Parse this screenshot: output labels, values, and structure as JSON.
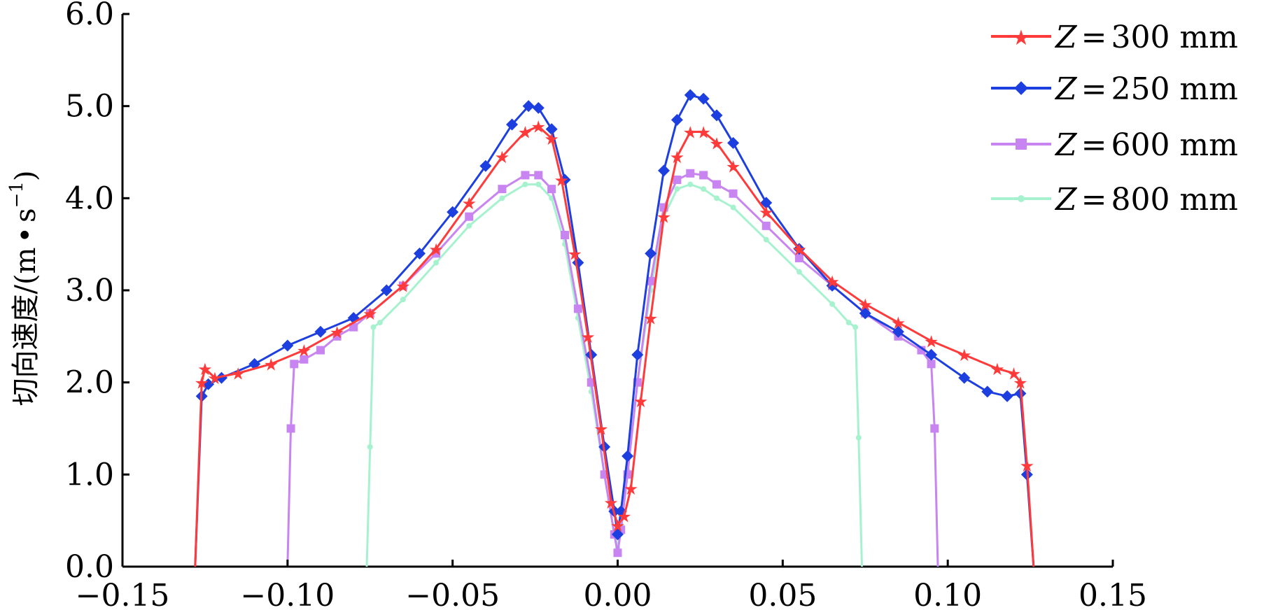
{
  "chart_data": {
    "type": "line",
    "title": "",
    "xlabel": "",
    "ylabel": "切向速度/(m·s⁻¹)",
    "ylabel_parts": {
      "main": "切向速度/(m",
      "dot": "•",
      "s": "s",
      "exp": "−1",
      "close": ")"
    },
    "xlim": [
      -0.15,
      0.15
    ],
    "ylim": [
      0.0,
      6.0
    ],
    "x_ticks": [
      -0.15,
      -0.1,
      -0.05,
      0.0,
      0.05,
      0.1,
      0.15
    ],
    "x_tick_labels": [
      "−0.15",
      "−0.10",
      "−0.05",
      "0.00",
      "0.05",
      "0.10",
      "0.15"
    ],
    "y_ticks": [
      0.0,
      1.0,
      2.0,
      3.0,
      4.0,
      5.0,
      6.0
    ],
    "y_tick_labels": [
      "0.0",
      "1.0",
      "2.0",
      "3.0",
      "4.0",
      "5.0",
      "6.0"
    ],
    "grid": false,
    "legend_position": "top-right",
    "series": [
      {
        "name": "Z=300 mm",
        "legend": {
          "var": "Z",
          "eq": "=",
          "value": "300 mm"
        },
        "color": "#ff3a3a",
        "marker": "star",
        "points": [
          [
            -0.128,
            0.0
          ],
          [
            -0.126,
            2.0
          ],
          [
            -0.125,
            2.15
          ],
          [
            -0.122,
            2.05
          ],
          [
            -0.115,
            2.1
          ],
          [
            -0.105,
            2.2
          ],
          [
            -0.095,
            2.35
          ],
          [
            -0.085,
            2.55
          ],
          [
            -0.075,
            2.75
          ],
          [
            -0.065,
            3.05
          ],
          [
            -0.055,
            3.45
          ],
          [
            -0.045,
            3.95
          ],
          [
            -0.035,
            4.45
          ],
          [
            -0.028,
            4.72
          ],
          [
            -0.024,
            4.78
          ],
          [
            -0.02,
            4.65
          ],
          [
            -0.017,
            4.2
          ],
          [
            -0.013,
            3.4
          ],
          [
            -0.009,
            2.5
          ],
          [
            -0.005,
            1.5
          ],
          [
            -0.002,
            0.7
          ],
          [
            0.0,
            0.45
          ],
          [
            0.002,
            0.55
          ],
          [
            0.004,
            0.85
          ],
          [
            0.007,
            1.8
          ],
          [
            0.01,
            2.7
          ],
          [
            0.014,
            3.8
          ],
          [
            0.018,
            4.45
          ],
          [
            0.022,
            4.72
          ],
          [
            0.026,
            4.72
          ],
          [
            0.03,
            4.6
          ],
          [
            0.035,
            4.35
          ],
          [
            0.045,
            3.85
          ],
          [
            0.055,
            3.45
          ],
          [
            0.065,
            3.1
          ],
          [
            0.075,
            2.85
          ],
          [
            0.085,
            2.65
          ],
          [
            0.095,
            2.45
          ],
          [
            0.105,
            2.3
          ],
          [
            0.115,
            2.15
          ],
          [
            0.12,
            2.1
          ],
          [
            0.122,
            2.0
          ],
          [
            0.124,
            1.1
          ],
          [
            0.126,
            0.0
          ]
        ]
      },
      {
        "name": "Z=250 mm",
        "legend": {
          "var": "Z",
          "eq": "=",
          "value": "250 mm"
        },
        "color": "#1d3fe0",
        "marker": "diamond",
        "points": [
          [
            -0.128,
            0.0
          ],
          [
            -0.126,
            1.85
          ],
          [
            -0.124,
            1.98
          ],
          [
            -0.12,
            2.05
          ],
          [
            -0.11,
            2.2
          ],
          [
            -0.1,
            2.4
          ],
          [
            -0.09,
            2.55
          ],
          [
            -0.08,
            2.7
          ],
          [
            -0.07,
            3.0
          ],
          [
            -0.06,
            3.4
          ],
          [
            -0.05,
            3.85
          ],
          [
            -0.04,
            4.35
          ],
          [
            -0.032,
            4.8
          ],
          [
            -0.027,
            5.0
          ],
          [
            -0.024,
            4.98
          ],
          [
            -0.02,
            4.75
          ],
          [
            -0.016,
            4.2
          ],
          [
            -0.012,
            3.3
          ],
          [
            -0.008,
            2.3
          ],
          [
            -0.004,
            1.3
          ],
          [
            -0.001,
            0.6
          ],
          [
            0.0,
            0.35
          ],
          [
            0.001,
            0.6
          ],
          [
            0.003,
            1.2
          ],
          [
            0.006,
            2.3
          ],
          [
            0.01,
            3.4
          ],
          [
            0.014,
            4.3
          ],
          [
            0.018,
            4.85
          ],
          [
            0.022,
            5.12
          ],
          [
            0.026,
            5.08
          ],
          [
            0.03,
            4.9
          ],
          [
            0.035,
            4.6
          ],
          [
            0.045,
            3.95
          ],
          [
            0.055,
            3.45
          ],
          [
            0.065,
            3.05
          ],
          [
            0.075,
            2.75
          ],
          [
            0.085,
            2.55
          ],
          [
            0.095,
            2.3
          ],
          [
            0.105,
            2.05
          ],
          [
            0.112,
            1.9
          ],
          [
            0.118,
            1.85
          ],
          [
            0.122,
            1.88
          ],
          [
            0.124,
            1.0
          ],
          [
            0.126,
            0.0
          ]
        ]
      },
      {
        "name": "Z=600 mm",
        "legend": {
          "var": "Z",
          "eq": "=",
          "value": "600 mm"
        },
        "color": "#c884f0",
        "marker": "square",
        "points": [
          [
            -0.1,
            0.0
          ],
          [
            -0.099,
            1.5
          ],
          [
            -0.098,
            2.2
          ],
          [
            -0.095,
            2.25
          ],
          [
            -0.09,
            2.35
          ],
          [
            -0.085,
            2.5
          ],
          [
            -0.08,
            2.6
          ],
          [
            -0.075,
            2.75
          ],
          [
            -0.065,
            3.05
          ],
          [
            -0.055,
            3.4
          ],
          [
            -0.045,
            3.8
          ],
          [
            -0.035,
            4.1
          ],
          [
            -0.028,
            4.25
          ],
          [
            -0.024,
            4.25
          ],
          [
            -0.02,
            4.1
          ],
          [
            -0.016,
            3.6
          ],
          [
            -0.012,
            2.8
          ],
          [
            -0.008,
            2.0
          ],
          [
            -0.004,
            1.0
          ],
          [
            -0.001,
            0.35
          ],
          [
            0.0,
            0.15
          ],
          [
            0.001,
            0.4
          ],
          [
            0.003,
            1.0
          ],
          [
            0.006,
            2.0
          ],
          [
            0.01,
            3.1
          ],
          [
            0.014,
            3.9
          ],
          [
            0.018,
            4.2
          ],
          [
            0.022,
            4.27
          ],
          [
            0.026,
            4.25
          ],
          [
            0.03,
            4.15
          ],
          [
            0.035,
            4.05
          ],
          [
            0.045,
            3.7
          ],
          [
            0.055,
            3.35
          ],
          [
            0.065,
            3.05
          ],
          [
            0.075,
            2.75
          ],
          [
            0.085,
            2.5
          ],
          [
            0.092,
            2.35
          ],
          [
            0.095,
            2.2
          ],
          [
            0.096,
            1.5
          ],
          [
            0.097,
            0.0
          ]
        ]
      },
      {
        "name": "Z=800 mm",
        "legend": {
          "var": "Z",
          "eq": "=",
          "value": "800 mm"
        },
        "color": "#a6f2cf",
        "marker": "dot",
        "points": [
          [
            -0.076,
            0.0
          ],
          [
            -0.075,
            1.3
          ],
          [
            -0.074,
            2.6
          ],
          [
            -0.072,
            2.65
          ],
          [
            -0.065,
            2.9
          ],
          [
            -0.055,
            3.3
          ],
          [
            -0.045,
            3.7
          ],
          [
            -0.035,
            4.0
          ],
          [
            -0.028,
            4.15
          ],
          [
            -0.024,
            4.15
          ],
          [
            -0.02,
            4.0
          ],
          [
            -0.016,
            3.5
          ],
          [
            -0.012,
            2.7
          ],
          [
            -0.008,
            1.9
          ],
          [
            -0.004,
            1.0
          ],
          [
            -0.001,
            0.35
          ],
          [
            0.0,
            0.2
          ],
          [
            0.001,
            0.45
          ],
          [
            0.003,
            1.05
          ],
          [
            0.006,
            2.0
          ],
          [
            0.01,
            3.0
          ],
          [
            0.014,
            3.8
          ],
          [
            0.018,
            4.1
          ],
          [
            0.022,
            4.15
          ],
          [
            0.026,
            4.1
          ],
          [
            0.03,
            4.0
          ],
          [
            0.035,
            3.9
          ],
          [
            0.045,
            3.55
          ],
          [
            0.055,
            3.2
          ],
          [
            0.065,
            2.85
          ],
          [
            0.07,
            2.65
          ],
          [
            0.072,
            2.6
          ],
          [
            0.073,
            1.4
          ],
          [
            0.074,
            0.0
          ]
        ]
      }
    ]
  }
}
